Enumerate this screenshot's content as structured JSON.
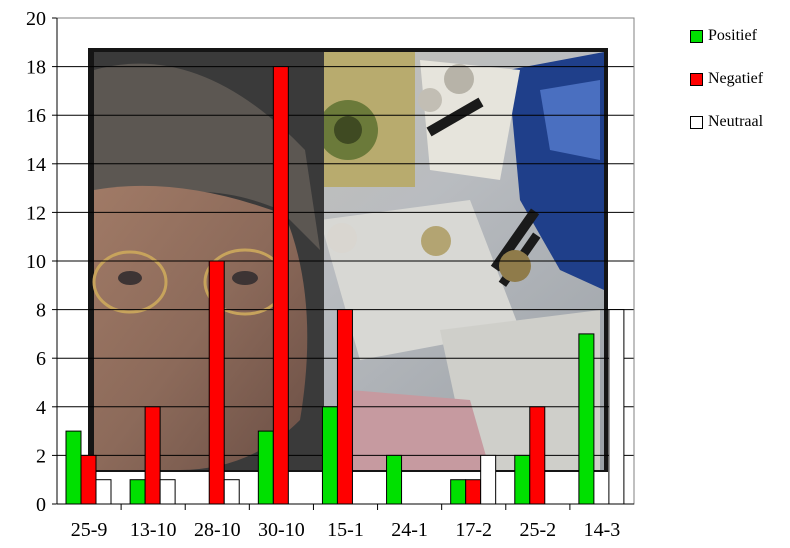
{
  "chart_data": {
    "type": "bar",
    "categories": [
      "25-9",
      "13-10",
      "28-10",
      "30-10",
      "15-1",
      "24-1",
      "17-2",
      "25-2",
      "14-3"
    ],
    "series": [
      {
        "name": "Positief",
        "color": "#00e000",
        "values": [
          3,
          1,
          0,
          3,
          4,
          2,
          1,
          2,
          7
        ]
      },
      {
        "name": "Negatief",
        "color": "#ff0000",
        "values": [
          2,
          4,
          10,
          18,
          8,
          0,
          1,
          4,
          0
        ]
      },
      {
        "name": "Neutraal",
        "color": "#ffffff",
        "values": [
          1,
          1,
          1,
          0,
          0,
          0,
          2,
          0,
          8
        ]
      }
    ],
    "y_ticks": [
      "0",
      "2",
      "4",
      "6",
      "8",
      "10",
      "12",
      "14",
      "16",
      "18",
      "20"
    ],
    "ylim": [
      0,
      20
    ],
    "grid": true,
    "legend_position": "right",
    "background": "photo collage of a man's face with banknotes, coins and receipts"
  }
}
